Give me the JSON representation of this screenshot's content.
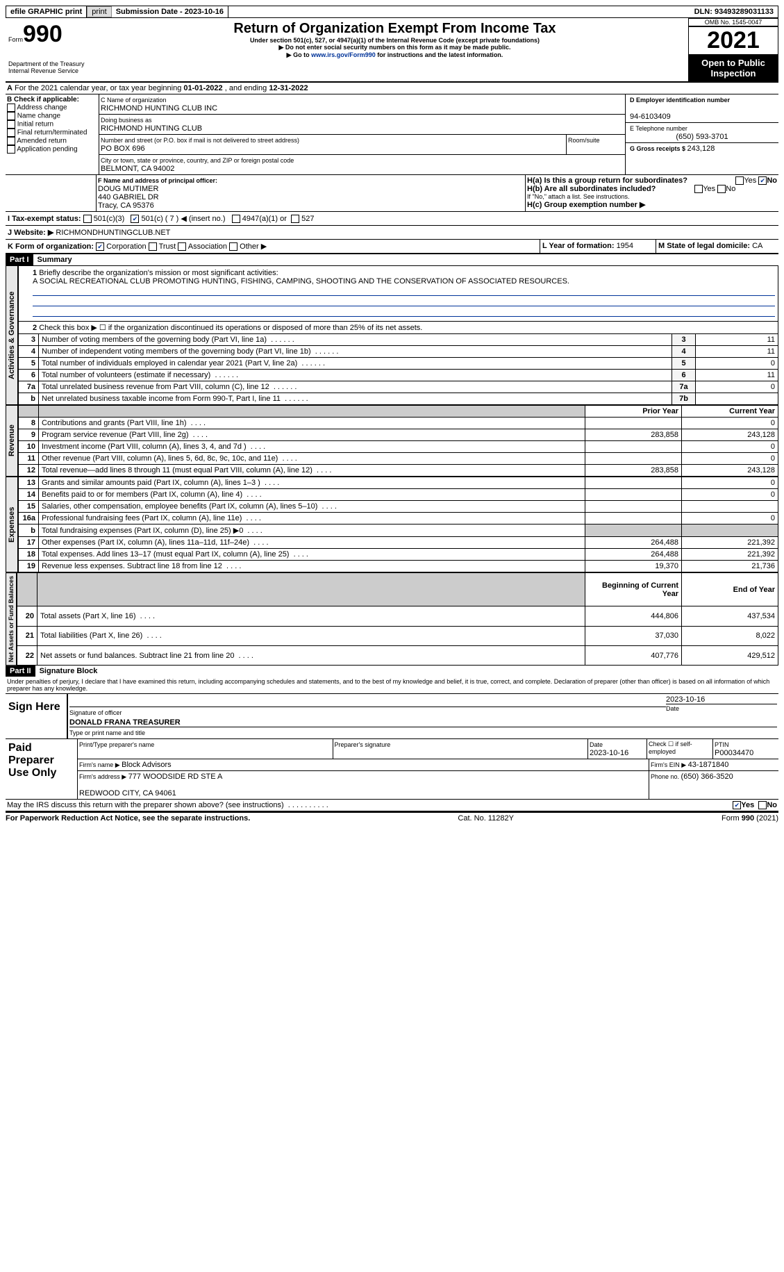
{
  "topbar": {
    "efile": "efile GRAPHIC print",
    "sub_label": "Submission Date - ",
    "sub_date": "2023-10-16",
    "dln_label": "DLN: ",
    "dln": "93493289031133"
  },
  "hdr": {
    "form_word": "Form",
    "form_no": "990",
    "dept": "Department of the Treasury\nInternal Revenue Service",
    "title": "Return of Organization Exempt From Income Tax",
    "sub": "Under section 501(c), 527, or 4947(a)(1) of the Internal Revenue Code (except private foundations)",
    "note1": "▶ Do not enter social security numbers on this form as it may be made public.",
    "note2_pre": "▶ Go to ",
    "note2_link": "www.irs.gov/Form990",
    "note2_post": " for instructions and the latest information.",
    "omb_label": "OMB No. ",
    "omb": "1545-0047",
    "year": "2021",
    "open": "Open to Public Inspection"
  },
  "A": {
    "text": "For the 2021 calendar year, or tax year beginning ",
    "begin": "01-01-2022",
    "mid": " , and ending ",
    "end": "12-31-2022"
  },
  "B": {
    "title": "B Check if applicable:",
    "opts": [
      "Address change",
      "Name change",
      "Initial return",
      "Final return/terminated",
      "Amended return",
      "Application pending"
    ]
  },
  "C": {
    "name_label": "C Name of organization",
    "name": "RICHMOND HUNTING CLUB INC",
    "dba_label": "Doing business as",
    "dba": "RICHMOND HUNTING CLUB",
    "street_label": "Number and street (or P.O. box if mail is not delivered to street address)",
    "room_label": "Room/suite",
    "street": "PO BOX 696",
    "city_label": "City or town, state or province, country, and ZIP or foreign postal code",
    "city": "BELMONT, CA  94002"
  },
  "D": {
    "label": "D Employer identification number",
    "val": "94-6103409"
  },
  "E": {
    "label": "E Telephone number",
    "val": "(650) 593-3701"
  },
  "G": {
    "label": "G Gross receipts $ ",
    "val": "243,128"
  },
  "F": {
    "label": "F  Name and address of principal officer:",
    "name": "DOUG MUTIMER",
    "addr": "440 GABRIEL DR\nTracy, CA  95376"
  },
  "H": {
    "a": "H(a)  Is this a group return for subordinates?",
    "a_no_checked": true,
    "b": "H(b)  Are all subordinates included?",
    "b_note": "If \"No,\" attach a list. See instructions.",
    "c": "H(c)  Group exemption number ▶"
  },
  "I": {
    "label": "I   Tax-exempt status:",
    "o1": "501(c)(3)",
    "o2": "501(c) ( 7 ) ◀ (insert no.)",
    "o3": "4947(a)(1) or",
    "o4": "527"
  },
  "J": {
    "label": "J   Website: ▶ ",
    "val": "RICHMONDHUNTINGCLUB.NET"
  },
  "K": {
    "label": "K Form of organization:",
    "opts": [
      "Corporation",
      "Trust",
      "Association",
      "Other ▶"
    ]
  },
  "L": {
    "label": "L Year of formation: ",
    "val": "1954"
  },
  "M": {
    "label": "M State of legal domicile: ",
    "val": "CA"
  },
  "part1": {
    "bar": "Part I",
    "title": "Summary",
    "l1": "Briefly describe the organization's mission or most significant activities:",
    "mission": "A SOCIAL RECREATIONAL CLUB PROMOTING HUNTING, FISHING, CAMPING, SHOOTING AND THE CONSERVATION OF ASSOCIATED RESOURCES.",
    "l2": "Check this box ▶ ☐ if the organization discontinued its operations or disposed of more than 25% of its net assets."
  },
  "gov_rows": [
    {
      "n": "3",
      "t": "Number of voting members of the governing body (Part VI, line 1a)",
      "ref": "3",
      "v": "11"
    },
    {
      "n": "4",
      "t": "Number of independent voting members of the governing body (Part VI, line 1b)",
      "ref": "4",
      "v": "11"
    },
    {
      "n": "5",
      "t": "Total number of individuals employed in calendar year 2021 (Part V, line 2a)",
      "ref": "5",
      "v": "0"
    },
    {
      "n": "6",
      "t": "Total number of volunteers (estimate if necessary)",
      "ref": "6",
      "v": "11"
    },
    {
      "n": "7a",
      "t": "Total unrelated business revenue from Part VIII, column (C), line 12",
      "ref": "7a",
      "v": "0"
    },
    {
      "n": "b",
      "t": "Net unrelated business taxable income from Form 990-T, Part I, line 11",
      "ref": "7b",
      "v": ""
    }
  ],
  "col_hdr": {
    "prior": "Prior Year",
    "current": "Current Year",
    "begin": "Beginning of Current Year",
    "end": "End of Year"
  },
  "rev_rows": [
    {
      "n": "8",
      "t": "Contributions and grants (Part VIII, line 1h)",
      "p": "",
      "c": "0"
    },
    {
      "n": "9",
      "t": "Program service revenue (Part VIII, line 2g)",
      "p": "283,858",
      "c": "243,128"
    },
    {
      "n": "10",
      "t": "Investment income (Part VIII, column (A), lines 3, 4, and 7d )",
      "p": "",
      "c": "0"
    },
    {
      "n": "11",
      "t": "Other revenue (Part VIII, column (A), lines 5, 6d, 8c, 9c, 10c, and 11e)",
      "p": "",
      "c": "0"
    },
    {
      "n": "12",
      "t": "Total revenue—add lines 8 through 11 (must equal Part VIII, column (A), line 12)",
      "p": "283,858",
      "c": "243,128"
    }
  ],
  "exp_rows": [
    {
      "n": "13",
      "t": "Grants and similar amounts paid (Part IX, column (A), lines 1–3 )",
      "p": "",
      "c": "0"
    },
    {
      "n": "14",
      "t": "Benefits paid to or for members (Part IX, column (A), line 4)",
      "p": "",
      "c": "0"
    },
    {
      "n": "15",
      "t": "Salaries, other compensation, employee benefits (Part IX, column (A), lines 5–10)",
      "p": "",
      "c": ""
    },
    {
      "n": "16a",
      "t": "Professional fundraising fees (Part IX, column (A), line 11e)",
      "p": "",
      "c": "0"
    },
    {
      "n": "b",
      "t": "Total fundraising expenses (Part IX, column (D), line 25) ▶0",
      "p": "SHADE",
      "c": "SHADE"
    },
    {
      "n": "17",
      "t": "Other expenses (Part IX, column (A), lines 11a–11d, 11f–24e)",
      "p": "264,488",
      "c": "221,392"
    },
    {
      "n": "18",
      "t": "Total expenses. Add lines 13–17 (must equal Part IX, column (A), line 25)",
      "p": "264,488",
      "c": "221,392"
    },
    {
      "n": "19",
      "t": "Revenue less expenses. Subtract line 18 from line 12",
      "p": "19,370",
      "c": "21,736"
    }
  ],
  "net_rows": [
    {
      "n": "20",
      "t": "Total assets (Part X, line 16)",
      "p": "444,806",
      "c": "437,534"
    },
    {
      "n": "21",
      "t": "Total liabilities (Part X, line 26)",
      "p": "37,030",
      "c": "8,022"
    },
    {
      "n": "22",
      "t": "Net assets or fund balances. Subtract line 21 from line 20",
      "p": "407,776",
      "c": "429,512"
    }
  ],
  "sections": {
    "gov": "Activities & Governance",
    "rev": "Revenue",
    "exp": "Expenses",
    "net": "Net Assets or Fund Balances"
  },
  "part2": {
    "bar": "Part II",
    "title": "Signature Block",
    "decl": "Under penalties of perjury, I declare that I have examined this return, including accompanying schedules and statements, and to the best of my knowledge and belief, it is true, correct, and complete. Declaration of preparer (other than officer) is based on all information of which preparer has any knowledge.",
    "sign_here": "Sign Here",
    "sig_label": "Signature of officer",
    "date_top": "2023-10-16",
    "name": "DONALD FRANA  TREASURER",
    "name_label": "Type or print name and title",
    "paid": "Paid Preparer Use Only",
    "pp_name_label": "Print/Type preparer's name",
    "pp_sig_label": "Preparer's signature",
    "pp_date_label": "Date",
    "pp_date": "2023-10-16",
    "pp_check": "Check ☐ if self-employed",
    "ptin_label": "PTIN",
    "ptin": "P00034470",
    "firm_name_label": "Firm's name    ▶ ",
    "firm_name": "Block Advisors",
    "firm_ein_label": "Firm's EIN ▶ ",
    "firm_ein": "43-1871840",
    "firm_addr_label": "Firm's address ▶ ",
    "firm_addr": "777 WOODSIDE RD STE A\n\nREDWOOD CITY, CA  94061",
    "phone_label": "Phone no. ",
    "phone": "(650) 366-3520",
    "discuss": "May the IRS discuss this return with the preparer shown above? (see instructions)",
    "yes": "Yes",
    "no": "No"
  },
  "footer": {
    "l": "For Paperwork Reduction Act Notice, see the separate instructions.",
    "m": "Cat. No. 11282Y",
    "r": "Form 990 (2021)"
  }
}
